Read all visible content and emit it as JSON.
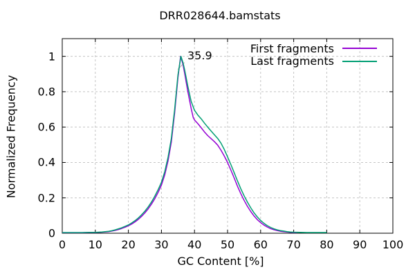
{
  "chart_data": {
    "type": "line",
    "title": "DRR028644.bamstats",
    "xlabel": "GC Content [%]",
    "ylabel": "Normalized Frequency",
    "xlim": [
      0,
      100
    ],
    "ylim": [
      0,
      1.1
    ],
    "xticks": [
      0,
      10,
      20,
      30,
      40,
      50,
      60,
      70,
      80,
      90,
      100
    ],
    "yticks": [
      0,
      0.2,
      0.4,
      0.6,
      0.8,
      1
    ],
    "grid": true,
    "legend_position": "top-right-inside",
    "annotation": {
      "label": "35.9",
      "x": 35.9,
      "y": 1.0
    },
    "series": [
      {
        "name": "First fragments",
        "color": "#9400d3",
        "points": [
          [
            0,
            0.003
          ],
          [
            3,
            0.003
          ],
          [
            6,
            0.003
          ],
          [
            8,
            0.004
          ],
          [
            10,
            0.004
          ],
          [
            12,
            0.006
          ],
          [
            14,
            0.009
          ],
          [
            15,
            0.012
          ],
          [
            16,
            0.016
          ],
          [
            17,
            0.021
          ],
          [
            18,
            0.027
          ],
          [
            19,
            0.034
          ],
          [
            20,
            0.042
          ],
          [
            21,
            0.052
          ],
          [
            22,
            0.064
          ],
          [
            23,
            0.078
          ],
          [
            24,
            0.095
          ],
          [
            25,
            0.115
          ],
          [
            26,
            0.138
          ],
          [
            27,
            0.165
          ],
          [
            28,
            0.195
          ],
          [
            29,
            0.231
          ],
          [
            30,
            0.272
          ],
          [
            31,
            0.33
          ],
          [
            32,
            0.41
          ],
          [
            33,
            0.515
          ],
          [
            34,
            0.68
          ],
          [
            35,
            0.88
          ],
          [
            35.8,
            1.0
          ],
          [
            36.5,
            0.955
          ],
          [
            37,
            0.905
          ],
          [
            38,
            0.8
          ],
          [
            39,
            0.705
          ],
          [
            39.6,
            0.655
          ],
          [
            40,
            0.64
          ],
          [
            41,
            0.62
          ],
          [
            42,
            0.597
          ],
          [
            43,
            0.573
          ],
          [
            44,
            0.552
          ],
          [
            45,
            0.535
          ],
          [
            46,
            0.518
          ],
          [
            47,
            0.498
          ],
          [
            48,
            0.47
          ],
          [
            49,
            0.437
          ],
          [
            50,
            0.4
          ],
          [
            51,
            0.357
          ],
          [
            52,
            0.312
          ],
          [
            53,
            0.266
          ],
          [
            54,
            0.224
          ],
          [
            55,
            0.186
          ],
          [
            56,
            0.152
          ],
          [
            57,
            0.123
          ],
          [
            58,
            0.098
          ],
          [
            59,
            0.077
          ],
          [
            60,
            0.06
          ],
          [
            61,
            0.046
          ],
          [
            62,
            0.035
          ],
          [
            63,
            0.026
          ],
          [
            64,
            0.02
          ],
          [
            65,
            0.015
          ],
          [
            66,
            0.011
          ],
          [
            67,
            0.009
          ],
          [
            68,
            0.007
          ],
          [
            69,
            0.005
          ],
          [
            70,
            0.004
          ],
          [
            71,
            0.004
          ]
        ]
      },
      {
        "name": "Last fragments",
        "color": "#009e73",
        "points": [
          [
            0,
            0.004
          ],
          [
            3,
            0.004
          ],
          [
            6,
            0.004
          ],
          [
            8,
            0.005
          ],
          [
            10,
            0.005
          ],
          [
            12,
            0.007
          ],
          [
            14,
            0.011
          ],
          [
            15,
            0.014
          ],
          [
            16,
            0.019
          ],
          [
            17,
            0.025
          ],
          [
            18,
            0.031
          ],
          [
            19,
            0.039
          ],
          [
            20,
            0.047
          ],
          [
            21,
            0.058
          ],
          [
            22,
            0.071
          ],
          [
            23,
            0.086
          ],
          [
            24,
            0.104
          ],
          [
            25,
            0.125
          ],
          [
            26,
            0.149
          ],
          [
            27,
            0.177
          ],
          [
            28,
            0.209
          ],
          [
            29,
            0.246
          ],
          [
            30,
            0.288
          ],
          [
            31,
            0.348
          ],
          [
            32,
            0.43
          ],
          [
            33,
            0.535
          ],
          [
            34,
            0.7
          ],
          [
            35,
            0.895
          ],
          [
            35.9,
            1.0
          ],
          [
            36.5,
            0.965
          ],
          [
            37,
            0.925
          ],
          [
            38,
            0.83
          ],
          [
            39,
            0.745
          ],
          [
            40,
            0.695
          ],
          [
            41,
            0.668
          ],
          [
            42,
            0.647
          ],
          [
            43,
            0.623
          ],
          [
            44,
            0.6
          ],
          [
            45,
            0.578
          ],
          [
            46,
            0.557
          ],
          [
            47,
            0.536
          ],
          [
            48,
            0.51
          ],
          [
            49,
            0.474
          ],
          [
            50,
            0.432
          ],
          [
            51,
            0.388
          ],
          [
            52,
            0.342
          ],
          [
            53,
            0.296
          ],
          [
            54,
            0.252
          ],
          [
            55,
            0.212
          ],
          [
            56,
            0.176
          ],
          [
            57,
            0.144
          ],
          [
            58,
            0.116
          ],
          [
            59,
            0.092
          ],
          [
            60,
            0.072
          ],
          [
            61,
            0.056
          ],
          [
            62,
            0.043
          ],
          [
            63,
            0.033
          ],
          [
            64,
            0.025
          ],
          [
            65,
            0.019
          ],
          [
            66,
            0.015
          ],
          [
            67,
            0.012
          ],
          [
            68,
            0.009
          ],
          [
            69,
            0.007
          ],
          [
            70,
            0.006
          ],
          [
            72,
            0.005
          ],
          [
            74,
            0.004
          ],
          [
            77,
            0.004
          ],
          [
            80,
            0.004
          ]
        ]
      }
    ],
    "colors": {
      "grid": "#c4c4c4",
      "border": "#000000",
      "annotation_pointer": "#9a9a9a"
    }
  }
}
